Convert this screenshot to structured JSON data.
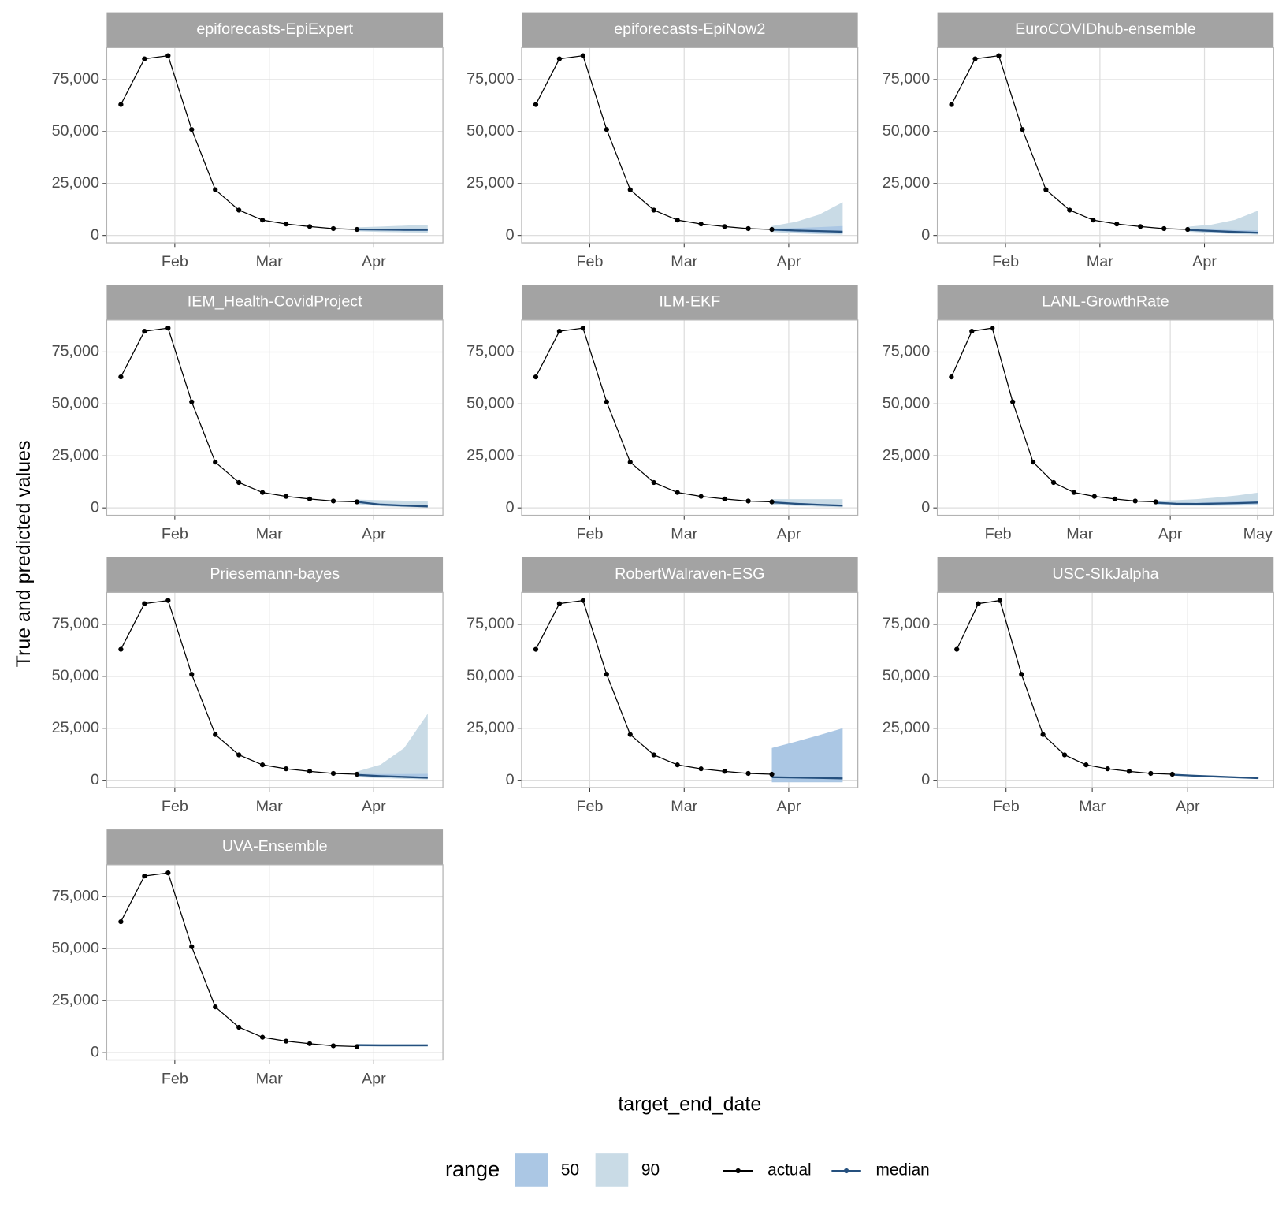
{
  "y_label": "True and predicted values",
  "x_label": "target_end_date",
  "legend": {
    "title": "range",
    "ranges": [
      {
        "name": "50",
        "color": "#abc7e4"
      },
      {
        "name": "90",
        "color": "#c9dbe6"
      }
    ],
    "lines": [
      {
        "name": "actual",
        "color": "#000000"
      },
      {
        "name": "median",
        "color": "#25507e"
      }
    ]
  },
  "chart_data": [
    {
      "type": "line",
      "title": "epiforecasts-EpiExpert",
      "x": [
        16,
        23,
        30,
        37,
        44,
        51,
        58,
        65,
        72,
        79,
        86
      ],
      "actual": [
        63000,
        85000,
        86500,
        51000,
        22000,
        12200,
        7400,
        5500,
        4300,
        3300,
        2900
      ],
      "forecast": {
        "x": [
          86,
          93,
          100,
          107
        ],
        "median": [
          2900,
          2800,
          2700,
          2700
        ],
        "ranges": [
          {
            "range": "90",
            "lower": [
              2000,
              1700,
              1500,
              1400
            ],
            "upper": [
              3900,
              4300,
              4700,
              5200
            ]
          },
          {
            "range": "50",
            "lower": [
              2500,
              2300,
              2200,
              2100
            ],
            "upper": [
              3300,
              3300,
              3400,
              3400
            ]
          }
        ]
      },
      "xlim": [
        11.8,
        111.5
      ],
      "ylim": [
        -3550,
        90400
      ],
      "xticks": [
        {
          "value": 32,
          "label": "Feb"
        },
        {
          "value": 60,
          "label": "Mar"
        },
        {
          "value": 91,
          "label": "Apr"
        }
      ],
      "yticks": [
        0,
        {
          "value": 25000,
          "label": "25,000"
        },
        {
          "value": 50000,
          "label": "50,000"
        },
        {
          "value": 75000,
          "label": "75,000"
        }
      ]
    },
    {
      "type": "line",
      "title": "epiforecasts-EpiNow2",
      "x": [
        16,
        23,
        30,
        37,
        44,
        51,
        58,
        65,
        72,
        79,
        86
      ],
      "actual": [
        63000,
        85000,
        86500,
        51000,
        22000,
        12200,
        7400,
        5500,
        4300,
        3300,
        2900
      ],
      "forecast": {
        "x": [
          86,
          93,
          100,
          107
        ],
        "median": [
          2800,
          2400,
          2100,
          1800
        ],
        "ranges": [
          {
            "range": "90",
            "lower": [
              1700,
              1000,
              600,
              400
            ],
            "upper": [
              4500,
              6500,
              10000,
              16000
            ]
          },
          {
            "range": "50",
            "lower": [
              2300,
              1700,
              1200,
              900
            ],
            "upper": [
              3300,
              3600,
              4000,
              4500
            ]
          }
        ]
      },
      "xlim": [
        11.8,
        111.5
      ],
      "ylim": [
        -3550,
        90400
      ],
      "xticks": [
        {
          "value": 32,
          "label": "Feb"
        },
        {
          "value": 60,
          "label": "Mar"
        },
        {
          "value": 91,
          "label": "Apr"
        }
      ],
      "yticks": [
        0,
        {
          "value": 25000,
          "label": "25,000"
        },
        {
          "value": 50000,
          "label": "50,000"
        },
        {
          "value": 75000,
          "label": "75,000"
        }
      ]
    },
    {
      "type": "line",
      "title": "EuroCOVIDhub-ensemble",
      "x": [
        16,
        23,
        30,
        37,
        44,
        51,
        58,
        65,
        72,
        79,
        86
      ],
      "actual": [
        63000,
        85000,
        86500,
        51000,
        22000,
        12200,
        7400,
        5500,
        4300,
        3300,
        2900
      ],
      "forecast": {
        "x": [
          86,
          93,
          100,
          107
        ],
        "median": [
          2700,
          2200,
          1700,
          1300
        ],
        "ranges": [
          {
            "range": "90",
            "lower": [
              1800,
              1200,
              700,
              400
            ],
            "upper": [
              4200,
              5200,
              7500,
              12000
            ]
          },
          {
            "range": "50",
            "lower": [
              2300,
              1700,
              1200,
              800
            ],
            "upper": [
              3100,
              2900,
              2600,
              2400
            ]
          }
        ]
      },
      "xlim": [
        11.8,
        111.5
      ],
      "ylim": [
        -3550,
        90400
      ],
      "xticks": [
        {
          "value": 32,
          "label": "Feb"
        },
        {
          "value": 60,
          "label": "Mar"
        },
        {
          "value": 91,
          "label": "Apr"
        }
      ],
      "yticks": [
        0,
        {
          "value": 25000,
          "label": "25,000"
        },
        {
          "value": 50000,
          "label": "50,000"
        },
        {
          "value": 75000,
          "label": "75,000"
        }
      ]
    },
    {
      "type": "line",
      "title": "IEM_Health-CovidProject",
      "x": [
        16,
        23,
        30,
        37,
        44,
        51,
        58,
        65,
        72,
        79,
        86
      ],
      "actual": [
        63000,
        85000,
        86500,
        51000,
        22000,
        12200,
        7400,
        5500,
        4300,
        3300,
        2900
      ],
      "forecast": {
        "x": [
          86,
          93,
          100,
          107
        ],
        "median": [
          2900,
          1600,
          1100,
          700
        ],
        "ranges": [
          {
            "range": "90",
            "lower": [
              1800,
              800,
              400,
              200
            ],
            "upper": [
              4000,
              3700,
              3500,
              3200
            ]
          },
          {
            "range": "50",
            "lower": [
              2400,
              1200,
              700,
              400
            ],
            "upper": [
              3300,
              2200,
              1700,
              1300
            ]
          }
        ]
      },
      "xlim": [
        11.8,
        111.5
      ],
      "ylim": [
        -3550,
        90400
      ],
      "xticks": [
        {
          "value": 32,
          "label": "Feb"
        },
        {
          "value": 60,
          "label": "Mar"
        },
        {
          "value": 91,
          "label": "Apr"
        }
      ],
      "yticks": [
        0,
        {
          "value": 25000,
          "label": "25,000"
        },
        {
          "value": 50000,
          "label": "50,000"
        },
        {
          "value": 75000,
          "label": "75,000"
        }
      ]
    },
    {
      "type": "line",
      "title": "ILM-EKF",
      "x": [
        16,
        23,
        30,
        37,
        44,
        51,
        58,
        65,
        72,
        79,
        86
      ],
      "actual": [
        63000,
        85000,
        86500,
        51000,
        22000,
        12200,
        7400,
        5500,
        4300,
        3300,
        2900
      ],
      "forecast": {
        "x": [
          86,
          93,
          100,
          107
        ],
        "median": [
          2700,
          2000,
          1500,
          1100
        ],
        "ranges": [
          {
            "range": "90",
            "lower": [
              1500,
              1000,
              600,
              300
            ],
            "upper": [
              4200,
              4200,
              4200,
              4200
            ]
          },
          {
            "range": "50",
            "lower": [
              2300,
              1700,
              1200,
              800
            ],
            "upper": [
              3200,
              2500,
              2000,
              1600
            ]
          }
        ]
      },
      "xlim": [
        11.8,
        111.5
      ],
      "ylim": [
        -3550,
        90400
      ],
      "xticks": [
        {
          "value": 32,
          "label": "Feb"
        },
        {
          "value": 60,
          "label": "Mar"
        },
        {
          "value": 91,
          "label": "Apr"
        }
      ],
      "yticks": [
        0,
        {
          "value": 25000,
          "label": "25,000"
        },
        {
          "value": 50000,
          "label": "50,000"
        },
        {
          "value": 75000,
          "label": "75,000"
        }
      ]
    },
    {
      "type": "line",
      "title": "LANL-GrowthRate",
      "x": [
        16,
        23,
        30,
        37,
        44,
        51,
        58,
        65,
        72,
        79,
        86
      ],
      "actual": [
        63000,
        85000,
        86500,
        51000,
        22000,
        12200,
        7400,
        5500,
        4300,
        3300,
        2900
      ],
      "forecast": {
        "x": [
          86,
          93,
          100,
          107,
          114,
          121
        ],
        "median": [
          2500,
          2000,
          1900,
          2100,
          2300,
          2600
        ],
        "ranges": [
          {
            "range": "90",
            "lower": [
              1500,
              1100,
              1000,
              1000,
              1100,
              1200
            ],
            "upper": [
              3500,
              3700,
              4200,
              5000,
              6000,
              7300
            ]
          },
          {
            "range": "50",
            "lower": [
              2100,
              1600,
              1500,
              1600,
              1700,
              1900
            ],
            "upper": [
              2900,
              2500,
              2500,
              2800,
              3100,
              3500
            ]
          }
        ]
      },
      "xlim": [
        11.2,
        126.4
      ],
      "ylim": [
        -3550,
        90400
      ],
      "xticks": [
        {
          "value": 32,
          "label": "Feb"
        },
        {
          "value": 60,
          "label": "Mar"
        },
        {
          "value": 91,
          "label": "Apr"
        },
        {
          "value": 121,
          "label": "May"
        }
      ],
      "yticks": [
        0,
        {
          "value": 25000,
          "label": "25,000"
        },
        {
          "value": 50000,
          "label": "50,000"
        },
        {
          "value": 75000,
          "label": "75,000"
        }
      ]
    },
    {
      "type": "line",
      "title": "Priesemann-bayes",
      "x": [
        16,
        23,
        30,
        37,
        44,
        51,
        58,
        65,
        72,
        79,
        86
      ],
      "actual": [
        63000,
        85000,
        86500,
        51000,
        22000,
        12200,
        7400,
        5500,
        4300,
        3300,
        2900
      ],
      "forecast": {
        "x": [
          86,
          93,
          100,
          107
        ],
        "median": [
          2600,
          2000,
          1600,
          1200
        ],
        "ranges": [
          {
            "range": "90",
            "lower": [
              1500,
              1000,
              700,
              400
            ],
            "upper": [
              4200,
              7500,
              15500,
              32000
            ]
          },
          {
            "range": "50",
            "lower": [
              2200,
              1600,
              1200,
              800
            ],
            "upper": [
              3100,
              3000,
              3000,
              3100
            ]
          }
        ]
      },
      "xlim": [
        11.8,
        111.5
      ],
      "ylim": [
        -3550,
        90400
      ],
      "xticks": [
        {
          "value": 32,
          "label": "Feb"
        },
        {
          "value": 60,
          "label": "Mar"
        },
        {
          "value": 91,
          "label": "Apr"
        }
      ],
      "yticks": [
        0,
        {
          "value": 25000,
          "label": "25,000"
        },
        {
          "value": 50000,
          "label": "50,000"
        },
        {
          "value": 75000,
          "label": "75,000"
        }
      ]
    },
    {
      "type": "line",
      "title": "RobertWalraven-ESG",
      "x": [
        16,
        23,
        30,
        37,
        44,
        51,
        58,
        65,
        72,
        79,
        86
      ],
      "actual": [
        63000,
        85000,
        86500,
        51000,
        22000,
        12200,
        7400,
        5500,
        4300,
        3300,
        2900
      ],
      "forecast": {
        "x": [
          86,
          93,
          100,
          107
        ],
        "median": [
          1500,
          1300,
          1100,
          900
        ],
        "ranges": [
          {
            "range": "50",
            "lower": [
              -1000,
              -1000,
              -1000,
              -1000
            ],
            "upper": [
              15500,
              18500,
              21700,
              25000
            ]
          }
        ]
      },
      "xlim": [
        11.8,
        111.5
      ],
      "ylim": [
        -3550,
        90400
      ],
      "xticks": [
        {
          "value": 32,
          "label": "Feb"
        },
        {
          "value": 60,
          "label": "Mar"
        },
        {
          "value": 91,
          "label": "Apr"
        }
      ],
      "yticks": [
        0,
        {
          "value": 25000,
          "label": "25,000"
        },
        {
          "value": 50000,
          "label": "50,000"
        },
        {
          "value": 75000,
          "label": "75,000"
        }
      ]
    },
    {
      "type": "line",
      "title": "USC-SIkJalpha",
      "x": [
        16,
        23,
        30,
        37,
        44,
        51,
        58,
        65,
        72,
        79,
        86
      ],
      "actual": [
        63000,
        85000,
        86500,
        51000,
        22000,
        12200,
        7400,
        5500,
        4300,
        3300,
        2900
      ],
      "forecast": {
        "x": [
          86,
          93,
          100,
          107,
          114
        ],
        "median": [
          2700,
          2200,
          1800,
          1400,
          1000
        ],
        "ranges": [
          {
            "range": "90",
            "lower": [
              2300,
              1800,
              1400,
              1000,
              700
            ],
            "upper": [
              3100,
              2600,
              2200,
              1800,
              1400
            ]
          },
          {
            "range": "50",
            "lower": [
              2500,
              2000,
              1600,
              1200,
              900
            ],
            "upper": [
              2900,
              2400,
              2000,
              1600,
              1200
            ]
          }
        ]
      },
      "xlim": [
        9.7,
        118.9
      ],
      "ylim": [
        -3550,
        90400
      ],
      "xticks": [
        {
          "value": 32,
          "label": "Feb"
        },
        {
          "value": 60,
          "label": "Mar"
        },
        {
          "value": 91,
          "label": "Apr"
        }
      ],
      "yticks": [
        0,
        {
          "value": 25000,
          "label": "25,000"
        },
        {
          "value": 50000,
          "label": "50,000"
        },
        {
          "value": 75000,
          "label": "75,000"
        }
      ]
    },
    {
      "type": "line",
      "title": "UVA-Ensemble",
      "x": [
        16,
        23,
        30,
        37,
        44,
        51,
        58,
        65,
        72,
        79,
        86
      ],
      "actual": [
        63000,
        85000,
        86500,
        51000,
        22000,
        12200,
        7400,
        5500,
        4300,
        3300,
        2900
      ],
      "forecast": {
        "x": [
          86,
          93,
          100,
          107
        ],
        "median": [
          3600,
          3500,
          3500,
          3500
        ],
        "ranges": [
          {
            "range": "90",
            "lower": [
              3000,
              2900,
              2900,
              2900
            ],
            "upper": [
              4200,
              4100,
              4100,
              4100
            ]
          },
          {
            "range": "50",
            "lower": [
              3400,
              3300,
              3300,
              3300
            ],
            "upper": [
              3800,
              3700,
              3700,
              3700
            ]
          }
        ]
      },
      "xlim": [
        11.8,
        111.5
      ],
      "ylim": [
        -3550,
        90400
      ],
      "xticks": [
        {
          "value": 32,
          "label": "Feb"
        },
        {
          "value": 60,
          "label": "Mar"
        },
        {
          "value": 91,
          "label": "Apr"
        }
      ],
      "yticks": [
        0,
        {
          "value": 25000,
          "label": "25,000"
        },
        {
          "value": 50000,
          "label": "50,000"
        },
        {
          "value": 75000,
          "label": "75,000"
        }
      ]
    }
  ]
}
